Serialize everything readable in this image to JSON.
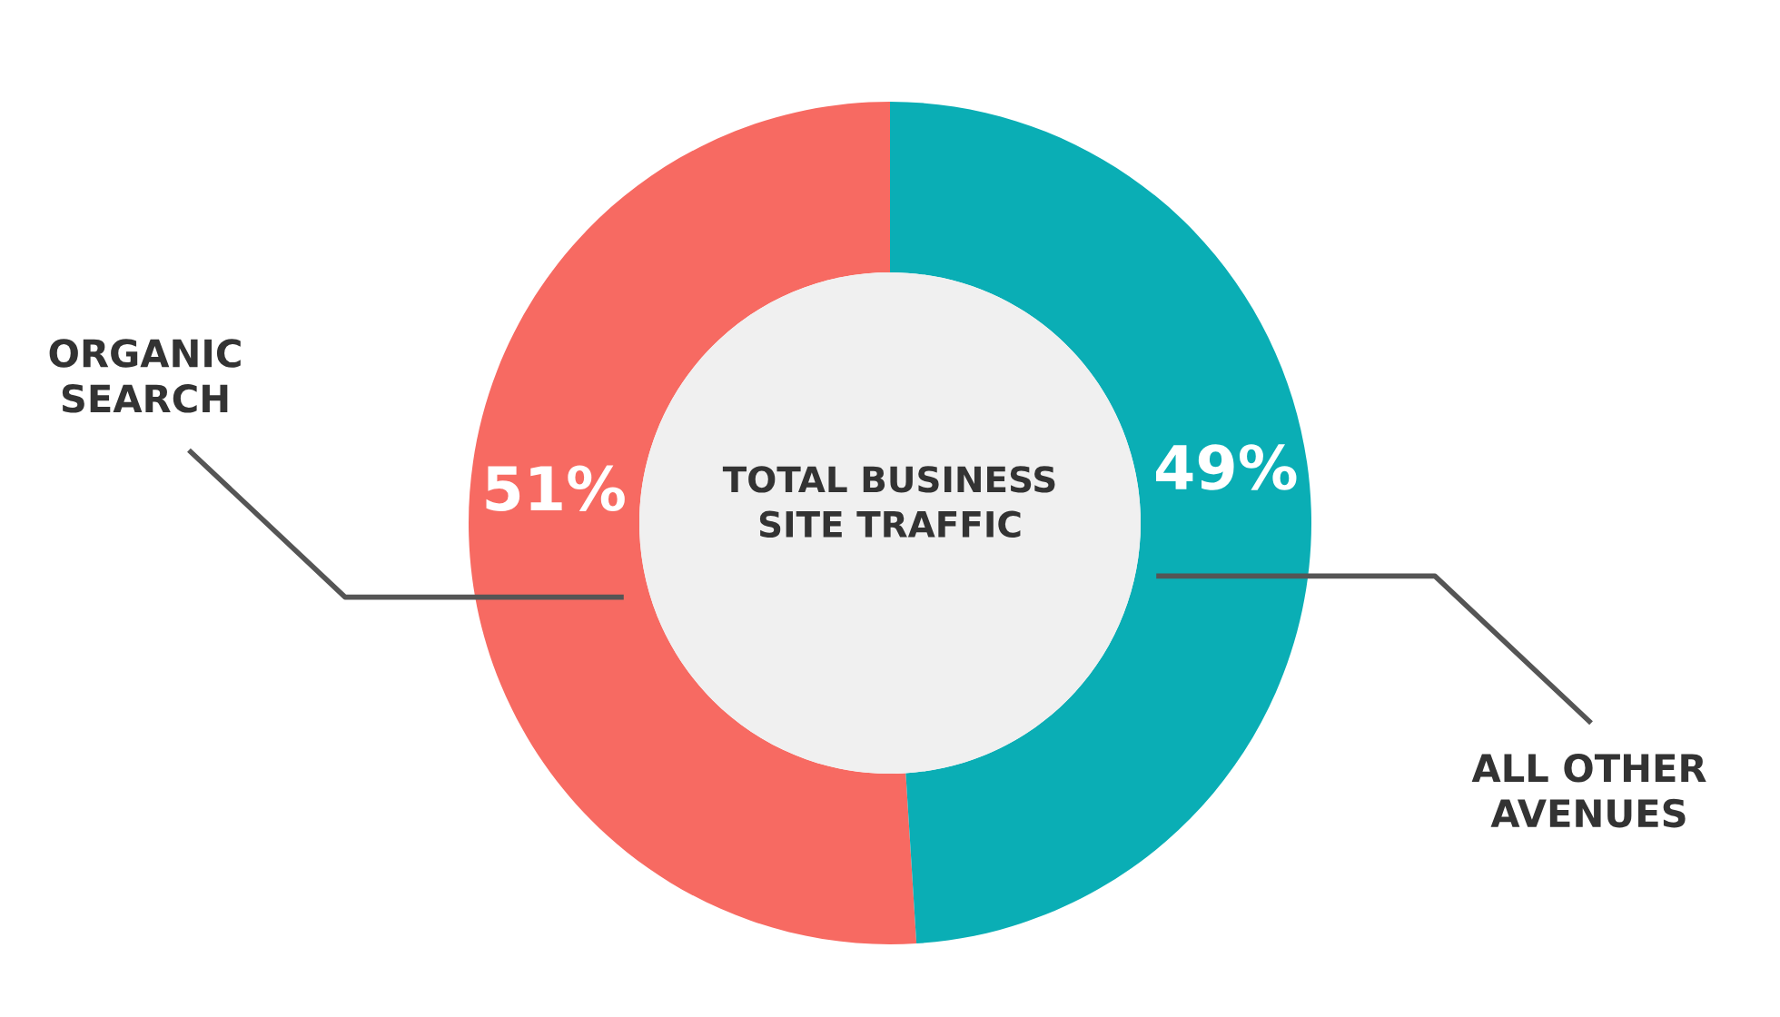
{
  "chart_data": {
    "type": "donut",
    "title": "TOTAL BUSINESS\nSITE TRAFFIC",
    "categories": [
      "ORGANIC\nSEARCH",
      "ALL OTHER\nAVENUES"
    ],
    "values": [
      51,
      49
    ],
    "colors": [
      "#f76a62",
      "#0aaeb5"
    ],
    "value_labels": [
      "51%",
      "49%"
    ]
  }
}
